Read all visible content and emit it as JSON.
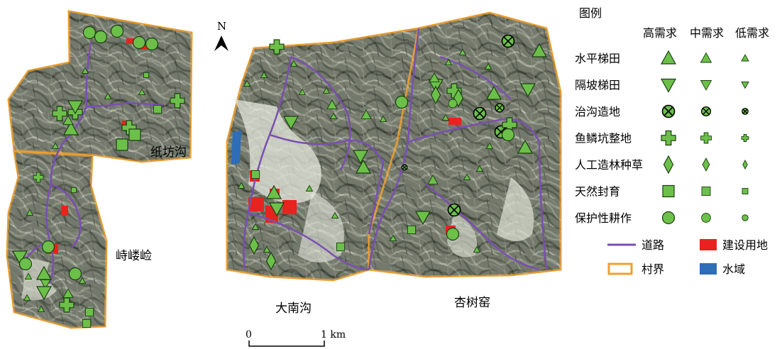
{
  "north_arrow": {
    "label": "N"
  },
  "scale_bar": {
    "zero_label": "0",
    "end_label": "1 km"
  },
  "regions": {
    "zhifanggou": "纸坊沟",
    "shilouxian": "峙嵝崄",
    "danangou": "大南沟",
    "xingshuyao": "杏树窑"
  },
  "legend": {
    "title": "图例",
    "columns": [
      "高需求",
      "中需求",
      "低需求"
    ],
    "measures": [
      {
        "label": "水平梯田",
        "icon": "triangle-up"
      },
      {
        "label": "隔坡梯田",
        "icon": "triangle-down"
      },
      {
        "label": "治沟造地",
        "icon": "circle-x"
      },
      {
        "label": "鱼鳞坑整地",
        "icon": "cross"
      },
      {
        "label": "人工造林种草",
        "icon": "diamond"
      },
      {
        "label": "天然封育",
        "icon": "square"
      },
      {
        "label": "保护性耕作",
        "icon": "circle"
      }
    ],
    "features": [
      {
        "label": "道路",
        "kind": "line",
        "color": "#7a4fb0"
      },
      {
        "label": "建设用地",
        "kind": "fill",
        "color": "#e8231f"
      },
      {
        "label": "村界",
        "kind": "outline",
        "color": "#f0a030"
      },
      {
        "label": "水域",
        "kind": "fill",
        "color": "#2e6db8"
      }
    ]
  },
  "colors": {
    "symbol_fill": "#6cc04a",
    "symbol_stroke": "#1b3d12",
    "boundary": "#f0a030",
    "road": "#7a4fb0",
    "built": "#e8231f",
    "water": "#2e6db8"
  }
}
